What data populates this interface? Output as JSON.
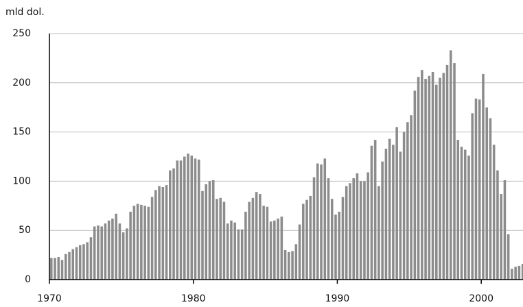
{
  "chart_data": {
    "type": "bar",
    "y_label": "mld dol.",
    "color": "#8c8c8c",
    "grid": true,
    "xlim": [
      1970,
      2002.9
    ],
    "xticks": [
      1970,
      1980,
      1990,
      2000
    ],
    "ylim": [
      0,
      250
    ],
    "yticks": [
      0,
      50,
      100,
      150,
      200,
      250
    ],
    "x": [
      1970,
      1970.25,
      1970.5,
      1970.75,
      1971,
      1971.25,
      1971.5,
      1971.75,
      1972,
      1972.25,
      1972.5,
      1972.75,
      1973,
      1973.25,
      1973.5,
      1973.75,
      1974,
      1974.25,
      1974.5,
      1974.75,
      1975,
      1975.25,
      1975.5,
      1975.75,
      1976,
      1976.25,
      1976.5,
      1976.75,
      1977,
      1977.25,
      1977.5,
      1977.75,
      1978,
      1978.25,
      1978.5,
      1978.75,
      1979,
      1979.25,
      1979.5,
      1979.75,
      1980,
      1980.25,
      1980.5,
      1980.75,
      1981,
      1981.25,
      1981.5,
      1981.75,
      1982,
      1982.25,
      1982.5,
      1982.75,
      1983,
      1983.25,
      1983.5,
      1983.75,
      1984,
      1984.25,
      1984.5,
      1984.75,
      1985,
      1985.25,
      1985.5,
      1985.75,
      1986,
      1986.25,
      1986.5,
      1986.75,
      1987,
      1987.25,
      1987.5,
      1987.75,
      1988,
      1988.25,
      1988.5,
      1988.75,
      1989,
      1989.25,
      1989.5,
      1989.75,
      1990,
      1990.25,
      1990.5,
      1990.75,
      1991,
      1991.25,
      1991.5,
      1991.75,
      1992,
      1992.25,
      1992.5,
      1992.75,
      1993,
      1993.25,
      1993.5,
      1993.75,
      1994,
      1994.25,
      1994.5,
      1994.75,
      1995,
      1995.25,
      1995.5,
      1995.75,
      1996,
      1996.25,
      1996.5,
      1996.75,
      1997,
      1997.25,
      1997.5,
      1997.75,
      1998,
      1998.25,
      1998.5,
      1998.75,
      1999,
      1999.25,
      1999.5,
      1999.75,
      2000,
      2000.25,
      2000.5,
      2000.75,
      2001,
      2001.25,
      2001.5,
      2001.75,
      2002,
      2002.25,
      2002.5,
      2002.75
    ],
    "values": [
      22,
      22,
      23,
      20,
      26,
      28,
      31,
      33,
      35,
      36,
      38,
      43,
      54,
      55,
      54,
      57,
      60,
      62,
      67,
      57,
      48,
      52,
      69,
      75,
      77,
      76,
      75,
      74,
      84,
      91,
      95,
      94,
      96,
      111,
      113,
      121,
      121,
      125,
      128,
      126,
      123,
      122,
      90,
      97,
      100,
      101,
      82,
      83,
      79,
      57,
      60,
      58,
      51,
      51,
      69,
      79,
      83,
      89,
      87,
      75,
      74,
      59,
      60,
      62,
      64,
      30,
      28,
      29,
      36,
      56,
      77,
      81,
      85,
      104,
      118,
      117,
      123,
      103,
      82,
      66,
      69,
      84,
      95,
      98,
      103,
      108,
      100,
      100,
      109,
      136,
      142,
      95,
      120,
      133,
      143,
      137,
      155,
      130,
      150,
      160,
      167,
      192,
      206,
      213,
      204,
      207,
      211,
      198,
      205,
      210,
      218,
      233,
      220,
      142,
      135,
      132,
      126,
      169,
      184,
      183,
      209,
      175,
      164,
      137,
      111,
      87,
      101,
      46,
      11,
      13,
      14,
      16
    ]
  }
}
